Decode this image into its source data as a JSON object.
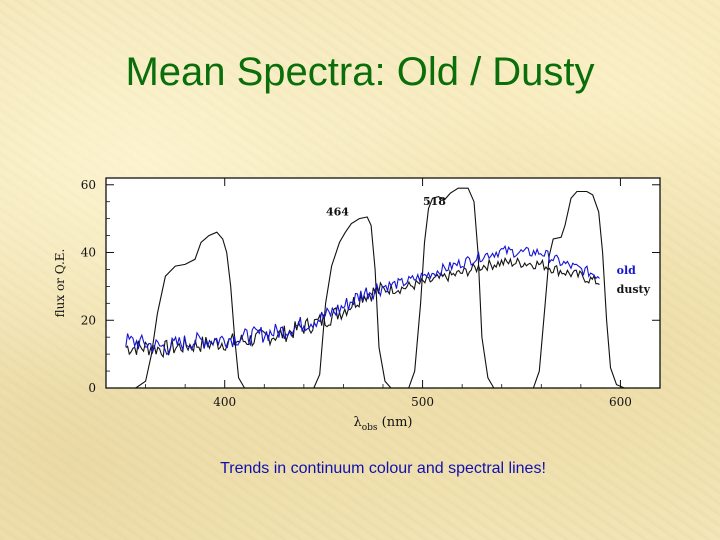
{
  "slide": {
    "title": "Mean Spectra: Old / Dusty",
    "caption": "Trends in continuum colour and spectral lines!"
  },
  "chart_data": {
    "type": "line",
    "xlabel": "λ",
    "xlabel_sub": "obs",
    "xlabel_unit": "(nm)",
    "ylabel": "flux or Q.E.",
    "xlim": [
      340,
      620
    ],
    "ylim": [
      0,
      62
    ],
    "xticks": [
      400,
      500,
      600
    ],
    "yticks": [
      0,
      20,
      40,
      60
    ],
    "grid": false,
    "annotations": [
      {
        "text": "464",
        "x": 457,
        "y": 51
      },
      {
        "text": "518",
        "x": 506,
        "y": 54
      }
    ],
    "filter_curves": [
      {
        "name": "filter-1",
        "points": [
          [
            355,
            0
          ],
          [
            360,
            2
          ],
          [
            363,
            10
          ],
          [
            366,
            22
          ],
          [
            370,
            33
          ],
          [
            375,
            36
          ],
          [
            380,
            36.5
          ],
          [
            385,
            38
          ],
          [
            388,
            43
          ],
          [
            392,
            45
          ],
          [
            396,
            46
          ],
          [
            399,
            44
          ],
          [
            401,
            40
          ],
          [
            403,
            30
          ],
          [
            405,
            15
          ],
          [
            407,
            3
          ],
          [
            410,
            0
          ]
        ]
      },
      {
        "name": "filter-464",
        "points": [
          [
            445,
            0
          ],
          [
            448,
            4
          ],
          [
            451,
            25
          ],
          [
            454,
            36
          ],
          [
            458,
            43
          ],
          [
            461,
            46
          ],
          [
            464,
            48.5
          ],
          [
            468,
            50
          ],
          [
            472,
            50.5
          ],
          [
            474,
            48
          ],
          [
            476,
            35
          ],
          [
            478,
            12
          ],
          [
            481,
            2
          ],
          [
            484,
            0
          ]
        ]
      },
      {
        "name": "filter-518",
        "points": [
          [
            493,
            0
          ],
          [
            496,
            5
          ],
          [
            499,
            25
          ],
          [
            501,
            43
          ],
          [
            503,
            53
          ],
          [
            505,
            56
          ],
          [
            508,
            56.5
          ],
          [
            511,
            55.5
          ],
          [
            514,
            57.5
          ],
          [
            518,
            59
          ],
          [
            523,
            59
          ],
          [
            526,
            55
          ],
          [
            528,
            40
          ],
          [
            530,
            15
          ],
          [
            533,
            3
          ],
          [
            536,
            0
          ]
        ]
      },
      {
        "name": "filter-4",
        "points": [
          [
            556,
            0
          ],
          [
            559,
            5
          ],
          [
            562,
            25
          ],
          [
            564,
            39
          ],
          [
            566,
            44
          ],
          [
            570,
            44.5
          ],
          [
            572,
            48
          ],
          [
            575,
            56
          ],
          [
            578,
            58
          ],
          [
            583,
            58
          ],
          [
            586,
            57
          ],
          [
            589,
            52
          ],
          [
            591,
            40
          ],
          [
            593,
            20
          ],
          [
            595,
            6
          ],
          [
            598,
            1
          ],
          [
            602,
            0
          ]
        ]
      }
    ],
    "series": [
      {
        "name": "old",
        "color": "#1414d2",
        "points": [
          [
            350,
            14
          ],
          [
            360,
            13
          ],
          [
            370,
            12
          ],
          [
            380,
            13.5
          ],
          [
            390,
            14
          ],
          [
            400,
            14.5
          ],
          [
            410,
            15
          ],
          [
            420,
            16
          ],
          [
            430,
            17
          ],
          [
            440,
            19
          ],
          [
            450,
            21
          ],
          [
            460,
            24
          ],
          [
            470,
            28
          ],
          [
            480,
            30
          ],
          [
            490,
            31
          ],
          [
            500,
            33
          ],
          [
            510,
            35
          ],
          [
            520,
            37
          ],
          [
            530,
            39
          ],
          [
            540,
            40.5
          ],
          [
            550,
            40
          ],
          [
            560,
            40
          ],
          [
            570,
            37
          ],
          [
            580,
            35
          ],
          [
            590,
            33
          ]
        ]
      },
      {
        "name": "dusty",
        "color": "#141414",
        "points": [
          [
            350,
            12
          ],
          [
            360,
            12
          ],
          [
            370,
            11.5
          ],
          [
            380,
            12.5
          ],
          [
            390,
            13
          ],
          [
            400,
            13.5
          ],
          [
            410,
            14
          ],
          [
            420,
            15
          ],
          [
            430,
            16
          ],
          [
            440,
            18
          ],
          [
            450,
            20
          ],
          [
            460,
            23
          ],
          [
            470,
            27.5
          ],
          [
            480,
            29
          ],
          [
            490,
            29.5
          ],
          [
            500,
            31
          ],
          [
            510,
            32.5
          ],
          [
            520,
            34
          ],
          [
            530,
            36
          ],
          [
            540,
            37
          ],
          [
            550,
            37
          ],
          [
            560,
            36.5
          ],
          [
            570,
            34.5
          ],
          [
            580,
            33
          ],
          [
            590,
            31
          ]
        ]
      }
    ]
  }
}
